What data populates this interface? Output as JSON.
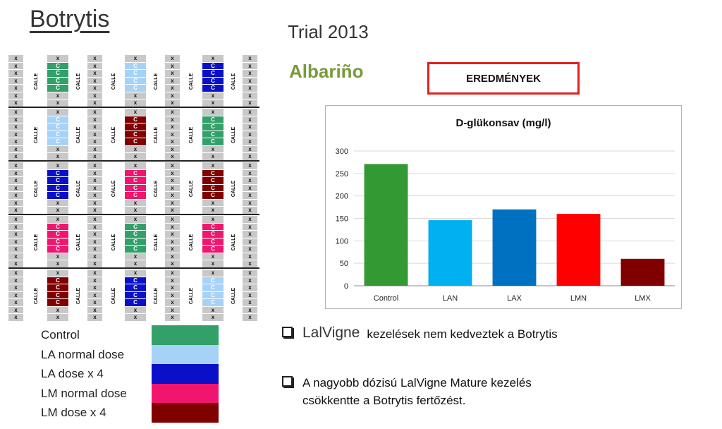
{
  "header": {
    "title": "Botrytis",
    "trial": "Trial 2013",
    "variety": "Albariño",
    "results_label": "EREDMÉNYEK"
  },
  "plot": {
    "x_mark": "x",
    "c_mark": "C",
    "calle_label": "CALLE",
    "treatment_colors": {
      "control": "#33a06a",
      "la_normal": "#a6d2f7",
      "la_x4": "#0a10c8",
      "lm_normal": "#f0166f",
      "lm_x4": "#800000"
    },
    "blocks": [
      [
        "control",
        "la_normal",
        "la_x4"
      ],
      [
        "la_normal",
        "lm_x4",
        "control"
      ],
      [
        "la_x4",
        "lm_normal",
        "lm_x4"
      ],
      [
        "lm_normal",
        "control",
        "lm_normal"
      ],
      [
        "lm_x4",
        "la_x4",
        "la_normal"
      ]
    ]
  },
  "legend": [
    {
      "label": "Control",
      "color": "#33a06a"
    },
    {
      "label": "LA normal dose",
      "color": "#a6d2f7"
    },
    {
      "label": "LA dose x 4",
      "color": "#0a10c8"
    },
    {
      "label": "LM normal dose",
      "color": "#f0166f"
    },
    {
      "label": "LM dose x 4",
      "color": "#800000"
    }
  ],
  "chart_data": {
    "type": "bar",
    "title": "D-glükonsav (mg/l)",
    "categories": [
      "Control",
      "LAN",
      "LAX",
      "LMN",
      "LMX"
    ],
    "values": [
      271,
      146,
      170,
      160,
      60
    ],
    "colors": [
      "#339933",
      "#00b0f0",
      "#0070c0",
      "#ff0000",
      "#800000"
    ],
    "ylim": [
      0,
      300
    ],
    "yticks": [
      0,
      50,
      100,
      150,
      200,
      250,
      300
    ],
    "grid": true,
    "legend": "none"
  },
  "bullets": [
    {
      "lead": "LalVigne",
      "text": "kezelések nem kedveztek a Botrytis"
    },
    {
      "lines": [
        "A nagyobb dózisú LalVigne Mature kezelés",
        "csökkentte a Botrytis fertőzést."
      ]
    }
  ]
}
